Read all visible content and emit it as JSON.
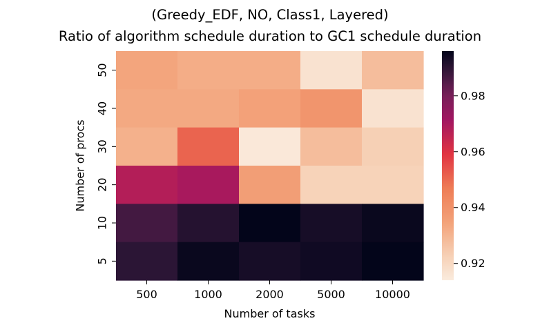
{
  "chart_data": {
    "type": "heatmap",
    "title": "(Greedy_EDF, NO, Class1, Layered)",
    "subtitle": "Ratio of algorithm schedule duration to GC1 schedule duration",
    "xlabel": "Number of tasks",
    "ylabel": "Number of procs",
    "x_categories": [
      "500",
      "1000",
      "2000",
      "5000",
      "10000"
    ],
    "y_categories": [
      "50",
      "40",
      "30",
      "20",
      "10",
      "5"
    ],
    "values": [
      [
        0.934,
        0.932,
        0.932,
        0.917,
        0.928
      ],
      [
        0.933,
        0.933,
        0.935,
        0.939,
        0.917
      ],
      [
        0.931,
        0.951,
        0.915,
        0.928,
        0.923
      ],
      [
        0.968,
        0.97,
        0.936,
        0.922,
        0.922
      ],
      [
        0.987,
        0.991,
        0.996,
        0.993,
        0.995
      ],
      [
        0.99,
        0.995,
        0.993,
        0.994,
        0.996
      ]
    ],
    "colorbar": {
      "vmin": 0.914,
      "vmax": 0.996,
      "ticks": [
        0.92,
        0.94,
        0.96,
        0.98
      ],
      "tick_labels": [
        "0.92",
        "0.94",
        "0.96",
        "0.98"
      ],
      "colormap": "rocket_r"
    }
  }
}
